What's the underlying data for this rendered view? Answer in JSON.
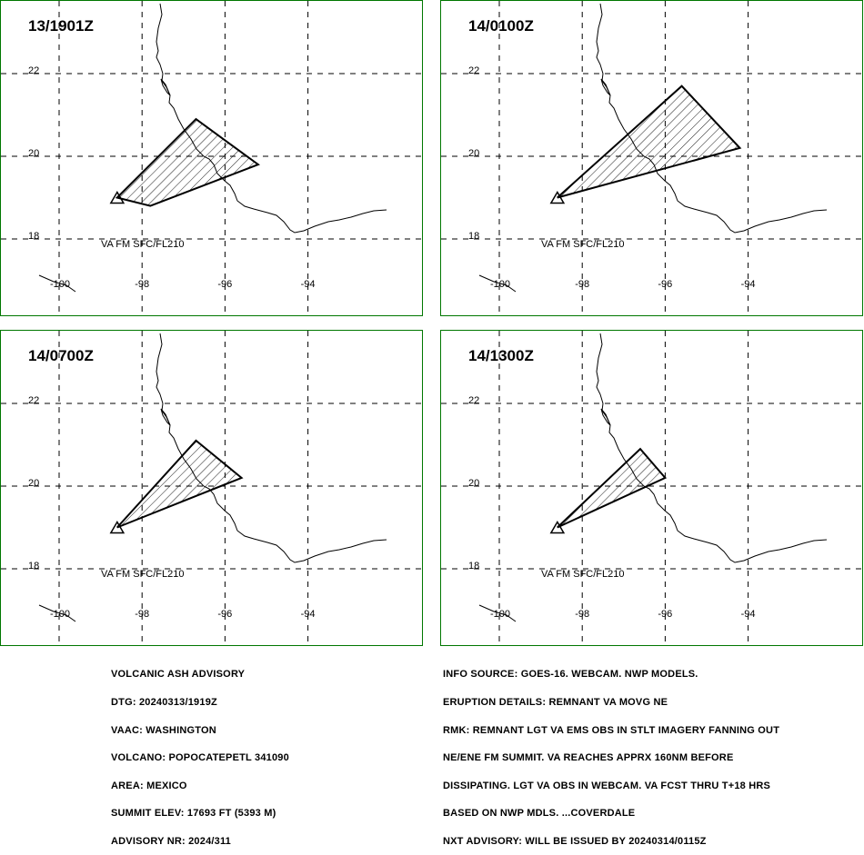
{
  "panels": [
    {
      "title": "13/1901Z",
      "va_label": "VA FM SFC/FL210",
      "ash_polygon_latlon": [
        [
          -98.6,
          19.0
        ],
        [
          -96.7,
          20.9
        ],
        [
          -95.2,
          19.8
        ],
        [
          -97.8,
          18.8
        ]
      ]
    },
    {
      "title": "14/0100Z",
      "va_label": "VA FM SFC/FL210",
      "ash_polygon_latlon": [
        [
          -98.6,
          19.0
        ],
        [
          -95.6,
          21.7
        ],
        [
          -94.2,
          20.2
        ]
      ]
    },
    {
      "title": "14/0700Z",
      "va_label": "VA FM SFC/FL210",
      "ash_polygon_latlon": [
        [
          -98.6,
          19.0
        ],
        [
          -96.7,
          21.1
        ],
        [
          -95.6,
          20.2
        ]
      ]
    },
    {
      "title": "14/1300Z",
      "va_label": "VA FM SFC/FL210",
      "ash_polygon_latlon": [
        [
          -98.6,
          19.0
        ],
        [
          -96.6,
          20.9
        ],
        [
          -96.0,
          20.2
        ]
      ]
    }
  ],
  "map": {
    "lat_ticks": [
      "22",
      "20",
      "18"
    ],
    "lon_ticks": [
      "-100",
      "-98",
      "-96",
      "-94"
    ],
    "volcano_symbol": "triangle",
    "colors": {
      "border": "#007700",
      "ash_outline": "#000000"
    }
  },
  "advisory_left": [
    "VOLCANIC ASH ADVISORY",
    "DTG: 20240313/1919Z",
    "VAAC: WASHINGTON",
    "VOLCANO: POPOCATEPETL 341090",
    "AREA: MEXICO",
    "SUMMIT ELEV: 17693 FT (5393 M)",
    "ADVISORY NR: 2024/311"
  ],
  "advisory_right": [
    "INFO SOURCE: GOES-16. WEBCAM. NWP MODELS.",
    "ERUPTION DETAILS: REMNANT VA MOVG NE",
    "RMK: REMNANT LGT VA EMS OBS IN STLT IMAGERY FANNING OUT",
    "NE/ENE FM SUMMIT. VA REACHES APPRX 160NM BEFORE",
    "DISSIPATING. LGT VA OBS IN WEBCAM. VA FCST THRU T+18 HRS",
    "BASED ON NWP MDLS. ...COVERDALE",
    "NXT ADVISORY: WILL BE ISSUED BY 20240314/0115Z"
  ]
}
